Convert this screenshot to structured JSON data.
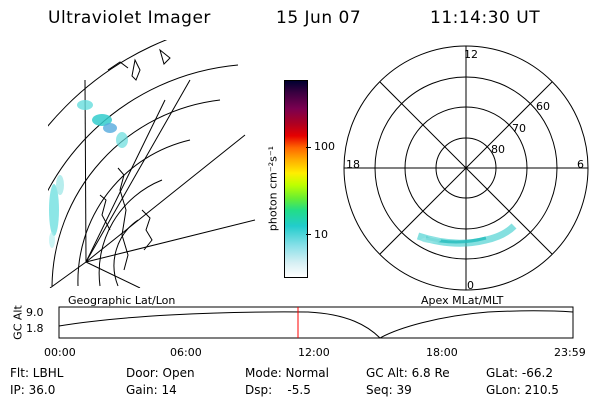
{
  "header": {
    "instrument": "Ultraviolet Imager",
    "date": "15 Jun 07",
    "time": "11:14:30 UT"
  },
  "colorbar": {
    "label": "photon cm⁻²s⁻¹",
    "ticks": [
      "100",
      "10"
    ],
    "colors": [
      "#000030",
      "#3a0040",
      "#7a0050",
      "#b00020",
      "#e60000",
      "#ff6600",
      "#ffaa00",
      "#ffee00",
      "#bfff00",
      "#66ee33",
      "#22dd88",
      "#22cccc",
      "#88e0e8",
      "#d8f0f4",
      "#ffffff"
    ]
  },
  "geographic_panel": {
    "label": "Geographic Lat/Lon"
  },
  "polar_panel": {
    "label": "Apex  MLat/MLT",
    "mlt_labels": {
      "top": "12",
      "left": "18",
      "right": "6",
      "bottom": "0"
    },
    "lat_labels": [
      "60",
      "70",
      "80"
    ]
  },
  "altitude_plot": {
    "ylabel": "GC Alt",
    "y_ticks": [
      "9.0",
      "1.8"
    ],
    "x_ticks": [
      "00:00",
      "06:00",
      "12:00",
      "18:00",
      "23:59"
    ],
    "marker_color": "#ff0000"
  },
  "info": {
    "filter": "Flt: LBHL",
    "ip": "IP: 36.0",
    "door": "Door: Open",
    "gain": "Gain: 14",
    "mode": "Mode: Normal",
    "dsp": "Dsp:    -5.5",
    "gc_alt": "GC Alt: 6.8 Re",
    "seq": "Seq: 39",
    "glat": "GLat: -66.2",
    "glon": "GLon: 210.5"
  }
}
